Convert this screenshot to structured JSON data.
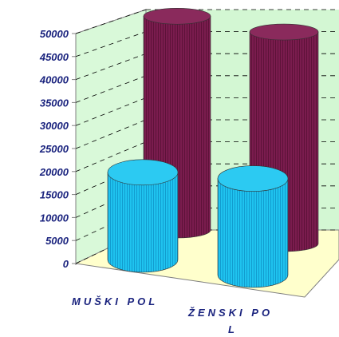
{
  "chart_data": {
    "type": "bar",
    "shape": "3d-cylinder",
    "categories": [
      "MUŠKI POL",
      "ŽENSKI POL"
    ],
    "category_label_lines": [
      [
        "MUŠKI POL"
      ],
      [
        "ŽENSKI PO",
        "L"
      ]
    ],
    "series": [
      {
        "values": [
          19500,
          21500
        ],
        "color": "#1fc3ef"
      },
      {
        "values": [
          48500,
          48000
        ],
        "color": "#7a1c4e"
      }
    ],
    "y_ticks": [
      "50000",
      "45000",
      "40000",
      "35000",
      "30000",
      "25000",
      "20000",
      "15000",
      "10000",
      "5000",
      "0"
    ],
    "ylim": [
      0,
      50000
    ],
    "grid": true,
    "wall_colors": {
      "back": "#d3f7d3",
      "side": "#d9f9d9",
      "floor": "#ffffcc"
    }
  }
}
